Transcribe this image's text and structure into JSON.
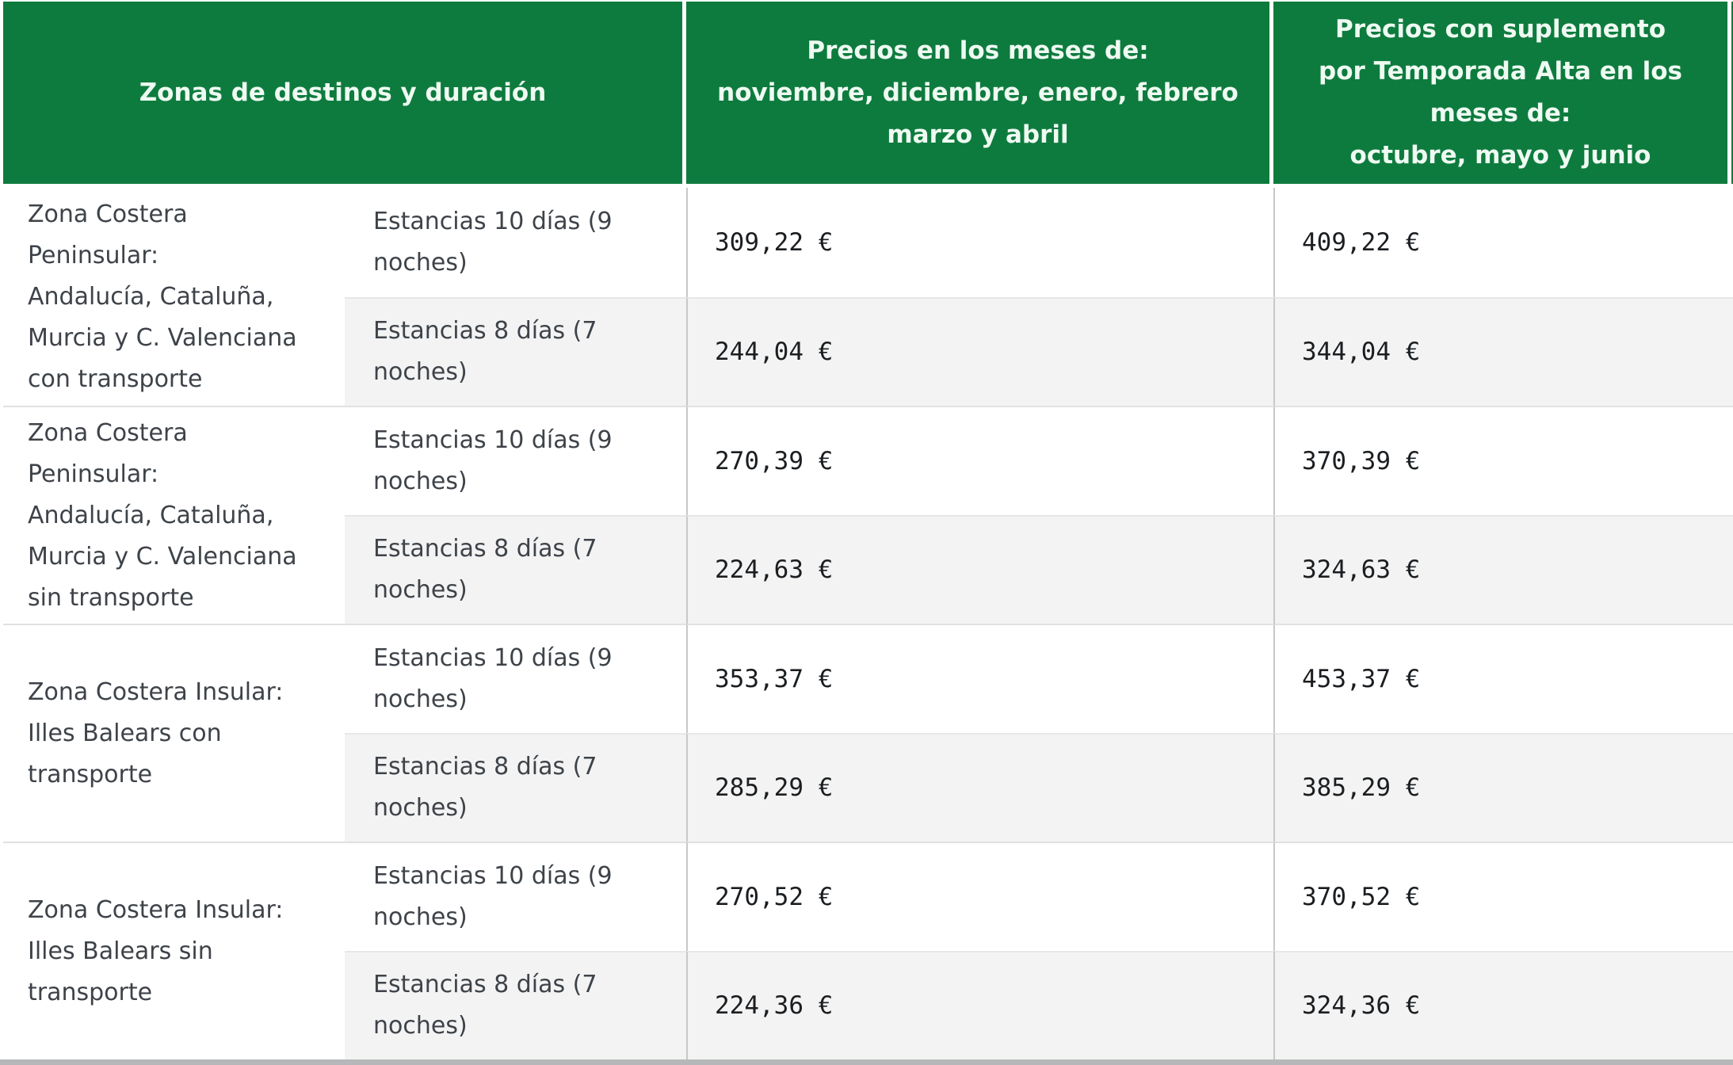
{
  "colors": {
    "header_green": "#0e7b3e",
    "header_text": "#eefaf2",
    "alt_row_gray": "#f3f3f3",
    "body_text": "#3e4349",
    "price_text": "#1b1e21"
  },
  "table": {
    "headers": {
      "zones": "Zonas de destinos y duración",
      "regular": "Precios en los meses de:\nnoviembre, diciembre, enero, febrero\nmarzo y abril",
      "high_season": "Precios con suplemento\npor Temporada Alta en los\nmeses de:\noctubre, mayo y junio"
    },
    "groups": [
      {
        "zone": "Zona Costera\nPeninsular:\nAndalucía, Cataluña,\nMurcia y C. Valenciana\ncon transporte",
        "rows": [
          {
            "duration": "Estancias 10 días (9\nnoches)",
            "price_regular": "309,22 €",
            "price_high": "409,22 €"
          },
          {
            "duration": "Estancias 8 días (7\nnoches)",
            "price_regular": "244,04 €",
            "price_high": "344,04 €"
          }
        ]
      },
      {
        "zone": "Zona Costera\nPeninsular:\nAndalucía, Cataluña,\nMurcia y C. Valenciana\nsin transporte",
        "rows": [
          {
            "duration": "Estancias 10 días (9\nnoches)",
            "price_regular": "270,39 €",
            "price_high": "370,39 €"
          },
          {
            "duration": "Estancias 8 días (7\nnoches)",
            "price_regular": "224,63 €",
            "price_high": "324,63 €"
          }
        ]
      },
      {
        "zone": "Zona Costera Insular:\nIlles Balears con\ntransporte",
        "rows": [
          {
            "duration": "Estancias 10 días (9\nnoches)",
            "price_regular": "353,37 €",
            "price_high": "453,37 €"
          },
          {
            "duration": "Estancias 8 días (7\nnoches)",
            "price_regular": "285,29 €",
            "price_high": "385,29 €"
          }
        ]
      },
      {
        "zone": "Zona Costera Insular:\nIlles Balears sin\ntransporte",
        "rows": [
          {
            "duration": "Estancias 10 días (9\nnoches)",
            "price_regular": "270,52 €",
            "price_high": "370,52 €"
          },
          {
            "duration": "Estancias 8 días (7\nnoches)",
            "price_regular": "224,36 €",
            "price_high": "324,36 €"
          }
        ]
      }
    ]
  }
}
